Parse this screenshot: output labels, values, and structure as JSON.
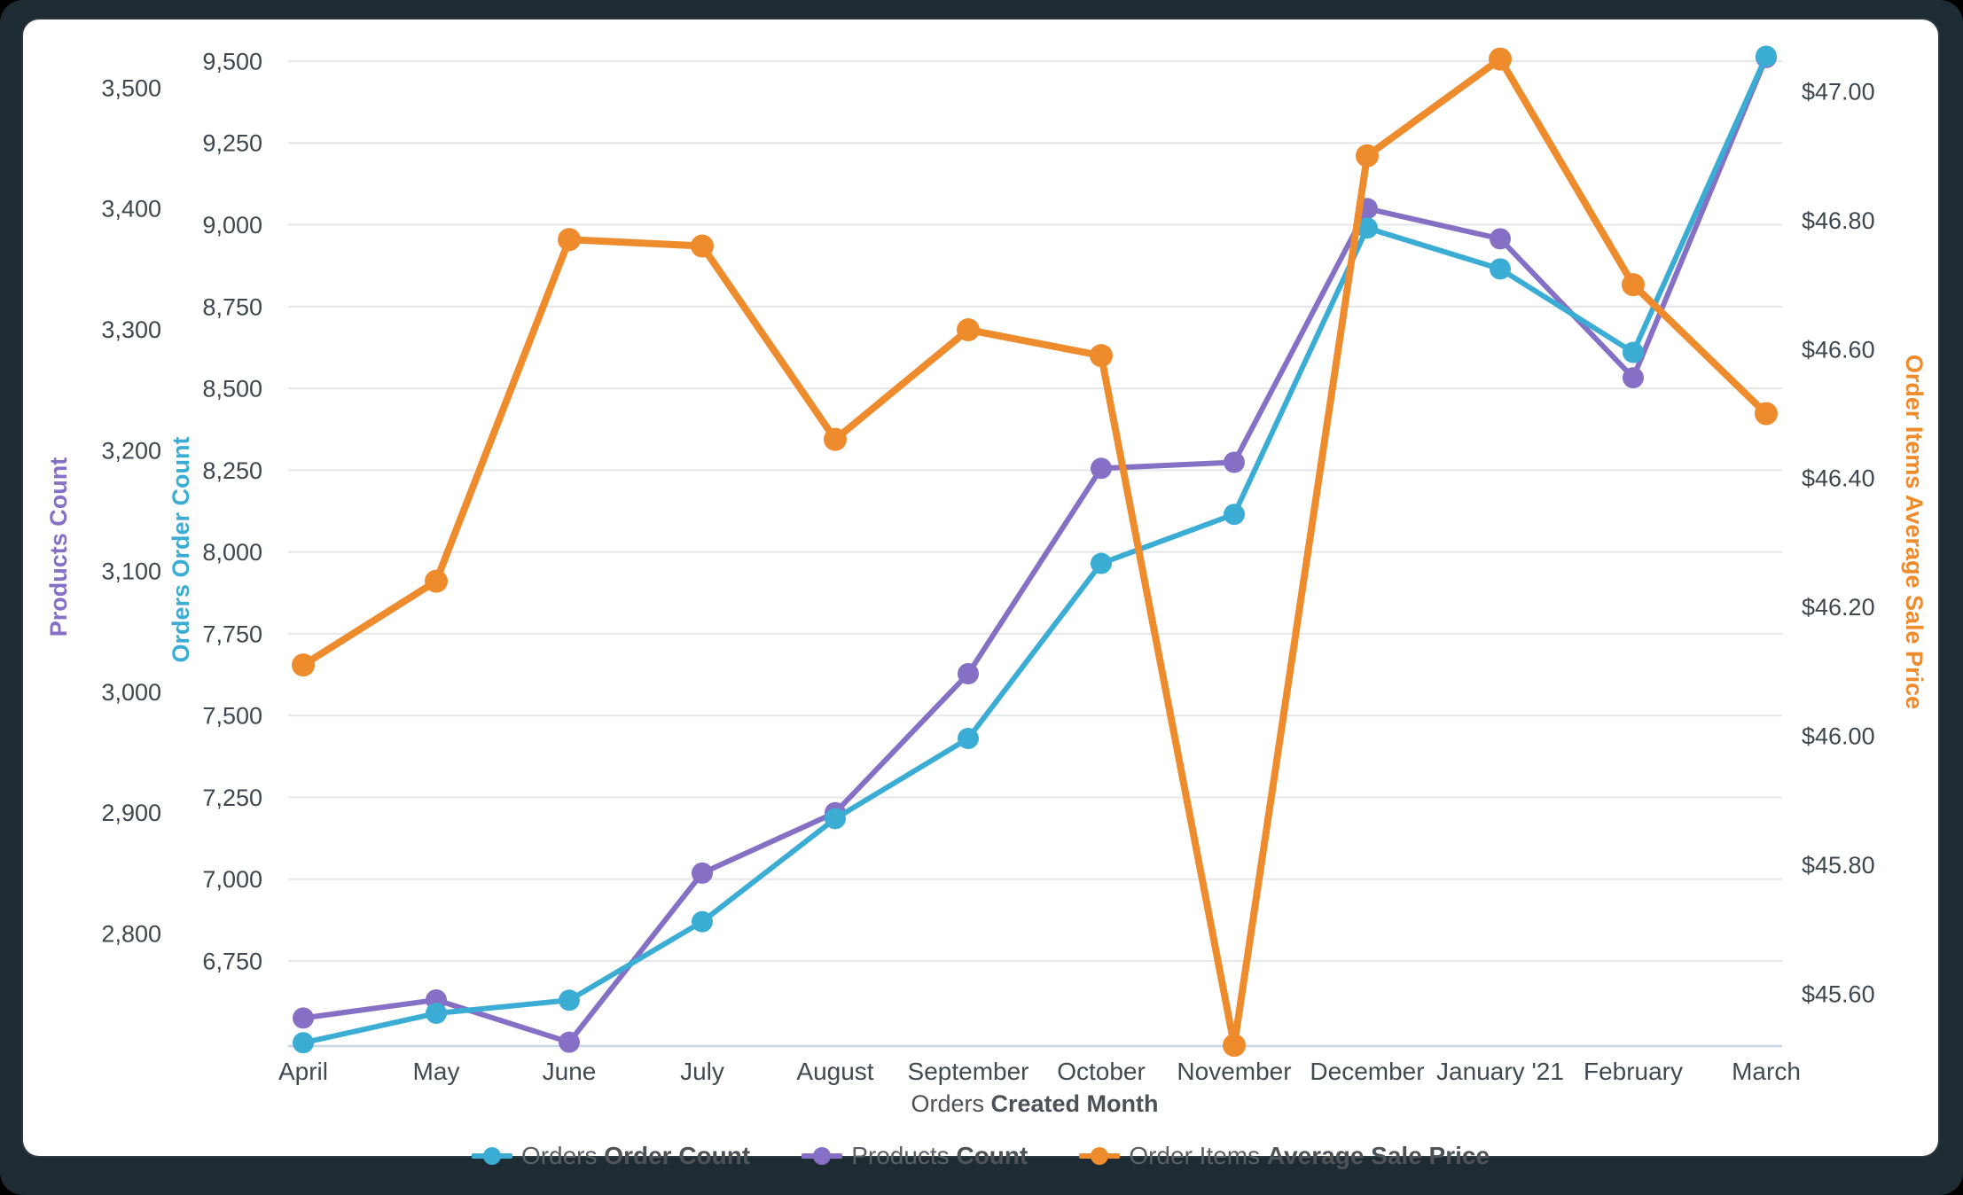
{
  "chart_data": {
    "type": "line",
    "categories": [
      "April",
      "May",
      "June",
      "July",
      "August",
      "September",
      "October",
      "November",
      "December",
      "January '21",
      "February",
      "March"
    ],
    "x_axis_title": {
      "regular": "Orders ",
      "bold": "Created Month"
    },
    "grid": true,
    "legend_position": "bottom",
    "axes": {
      "products": {
        "title": "Products Count",
        "color": "#8670C5",
        "side": "left-outer",
        "tick_labels": [
          "3,500",
          "3,400",
          "3,300",
          "3,200",
          "3,100",
          "3,000",
          "2,900",
          "2,800"
        ],
        "tick_values": [
          3500,
          3400,
          3300,
          3200,
          3100,
          3000,
          2900,
          2800
        ],
        "range": [
          2707,
          3540
        ]
      },
      "orders": {
        "title": "Orders Order Count",
        "color": "#3BADD4",
        "side": "left-inner",
        "tick_labels": [
          "9,500",
          "9,250",
          "9,000",
          "8,750",
          "8,500",
          "8,250",
          "8,000",
          "7,750",
          "7,500",
          "7,250",
          "7,000",
          "6,750"
        ],
        "tick_values": [
          9500,
          9250,
          9000,
          8750,
          8500,
          8250,
          8000,
          7750,
          7500,
          7250,
          7000,
          6750
        ],
        "range": [
          6490,
          9565
        ]
      },
      "price": {
        "title": "Order Items Average Sale Price",
        "color": "#ED8B2D",
        "side": "right",
        "tick_labels": [
          "$47.00",
          "$46.80",
          "$46.60",
          "$46.40",
          "$46.20",
          "$46.00",
          "$45.80",
          "$45.60"
        ],
        "tick_values": [
          47.0,
          46.8,
          46.6,
          46.4,
          46.2,
          46.0,
          45.8,
          45.6
        ],
        "range": [
          45.52,
          47.08
        ]
      }
    },
    "series": [
      {
        "id": "products",
        "name_regular": "Products ",
        "name_bold": "Count",
        "color": "#8670C5",
        "axis": "products",
        "values": [
          2730,
          2745,
          2710,
          2850,
          2900,
          3015,
          3185,
          3190,
          3400,
          3375,
          3260,
          3525
        ]
      },
      {
        "id": "orders",
        "name_regular": "Orders ",
        "name_bold": "Order Count",
        "color": "#3BADD4",
        "axis": "orders",
        "values": [
          6500,
          6590,
          6630,
          6870,
          7185,
          7430,
          7965,
          8115,
          8990,
          8865,
          8610,
          9515
        ]
      },
      {
        "id": "price",
        "name_regular": "Order Items ",
        "name_bold": "Average Sale Price",
        "color": "#ED8B2D",
        "axis": "price",
        "values": [
          46.11,
          46.24,
          46.77,
          46.76,
          46.46,
          46.63,
          46.59,
          45.52,
          46.9,
          47.05,
          46.7,
          46.5
        ]
      }
    ],
    "legend_order": [
      "orders",
      "products",
      "price"
    ]
  }
}
